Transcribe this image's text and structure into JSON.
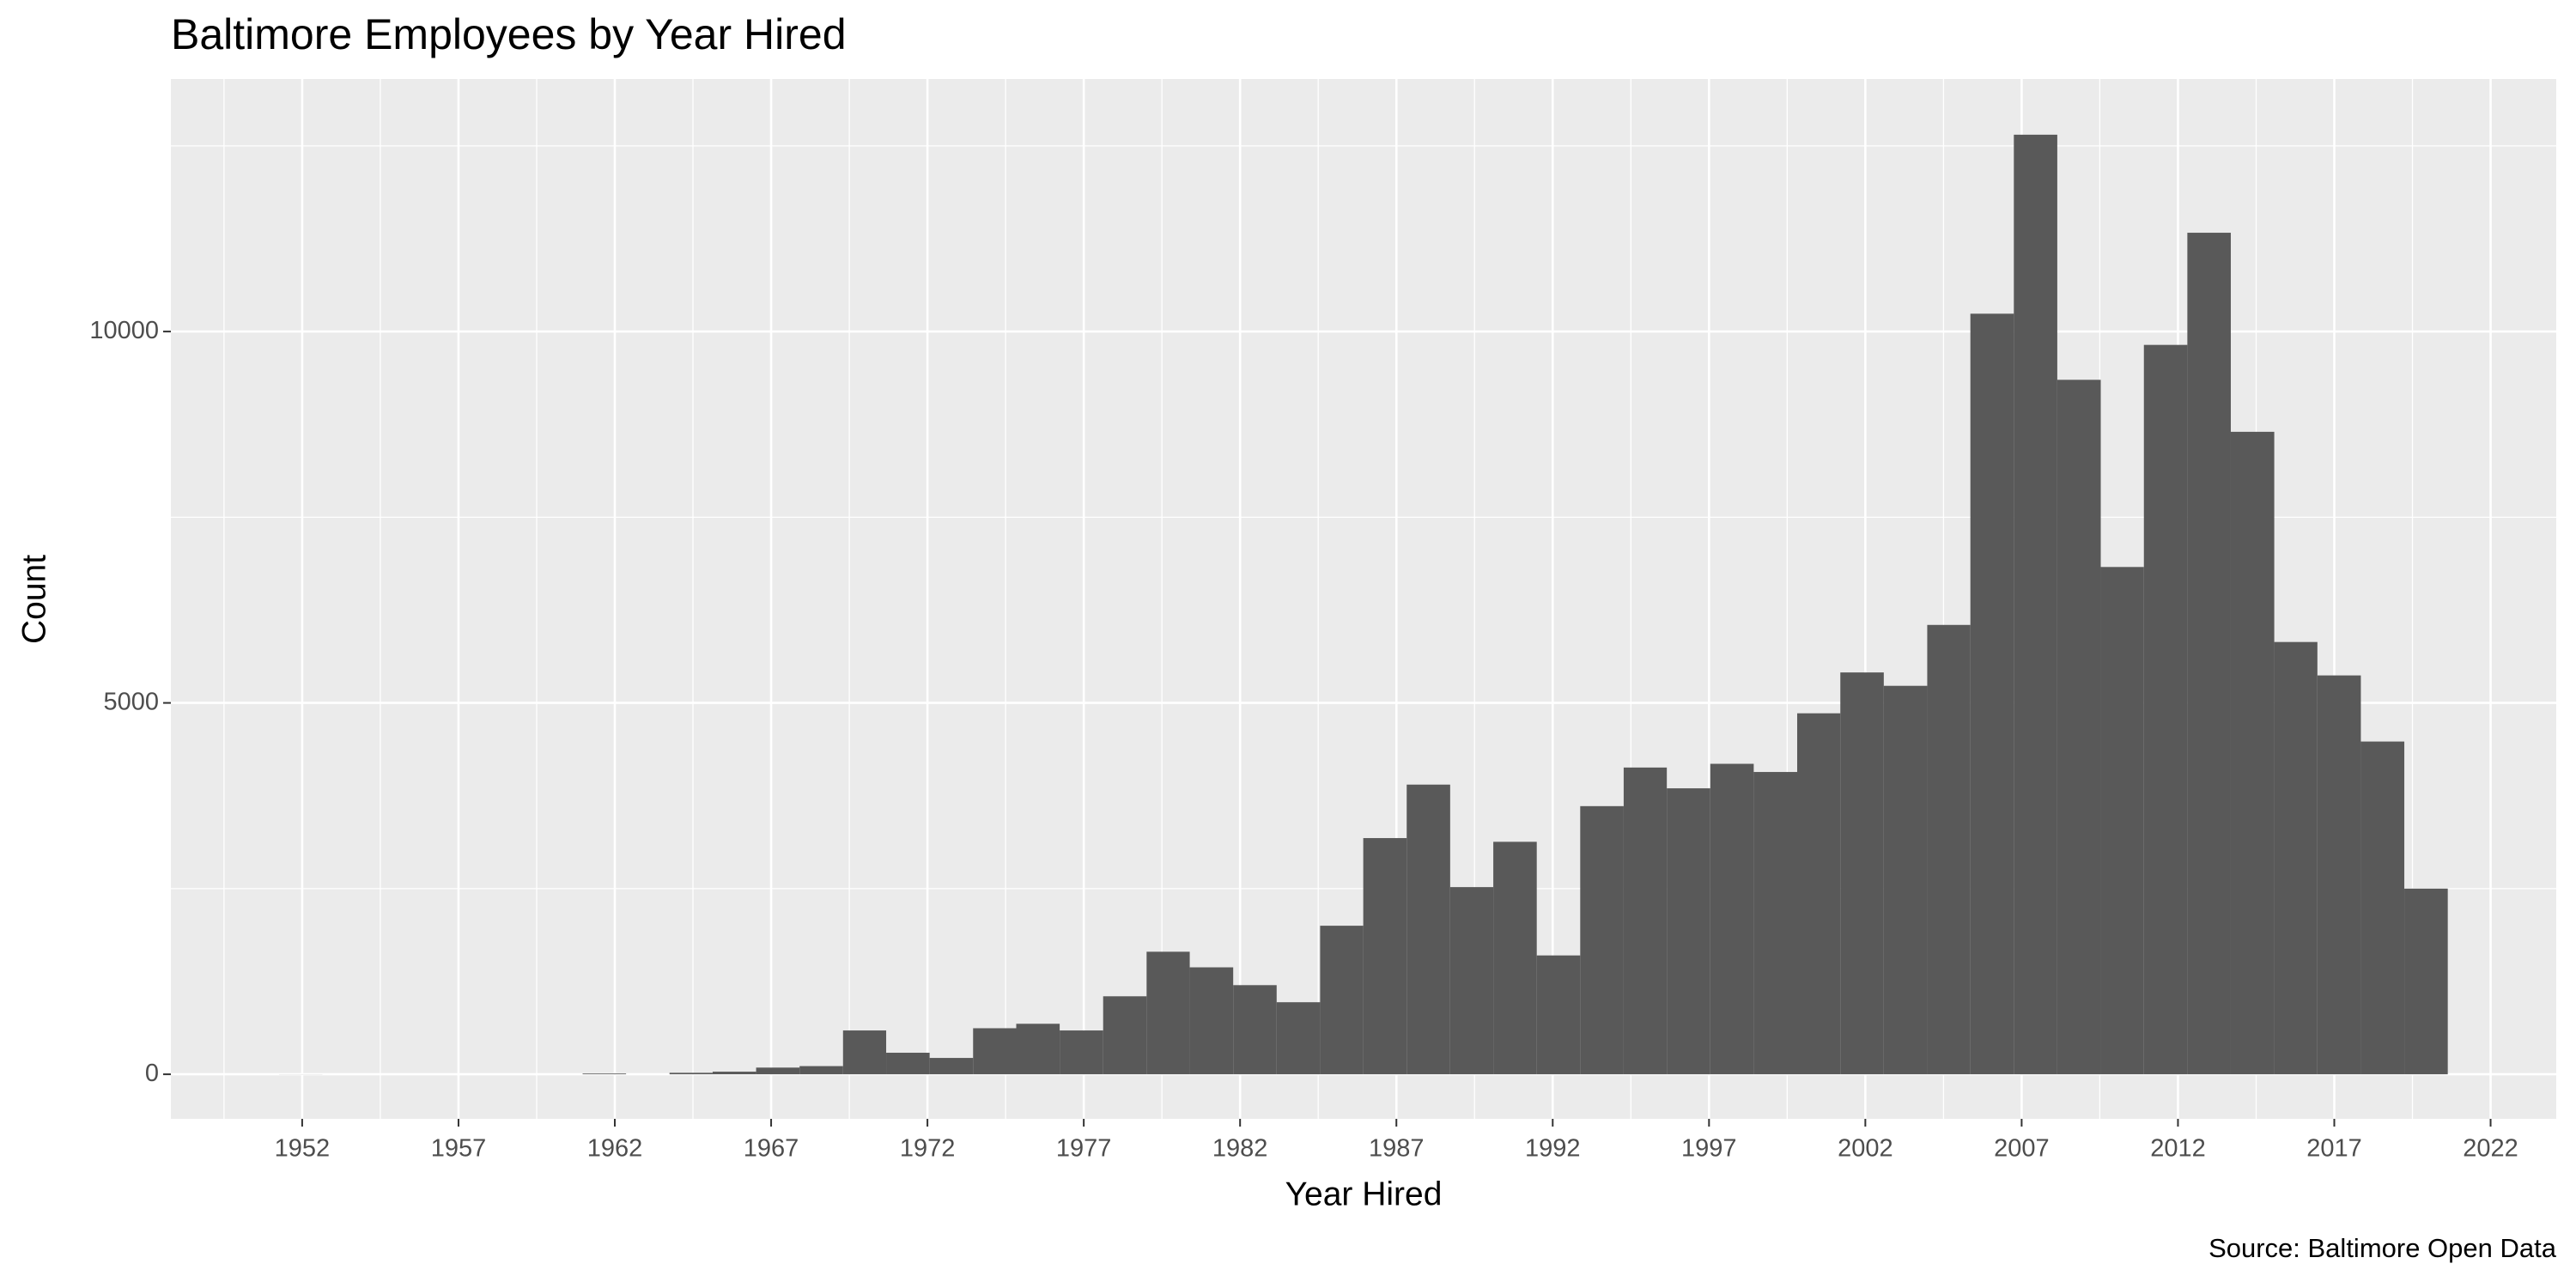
{
  "chart_data": {
    "type": "histogram",
    "title": "Baltimore Employees by Year Hired",
    "x_label": "Year Hired",
    "y_label": "Count",
    "caption": "Source: Baltimore Open Data",
    "color": "#595959",
    "bins": [
      1951.26,
      1952.65,
      1954.04,
      1955.42,
      1956.81,
      1958.2,
      1959.58,
      1960.97,
      1962.36,
      1963.75,
      1965.13,
      1966.52,
      1967.91,
      1969.3,
      1970.68,
      1972.07,
      1973.46,
      1974.84,
      1976.23,
      1977.62,
      1979.01,
      1980.39,
      1981.78,
      1983.17,
      1984.56,
      1985.94,
      1987.33,
      1988.72,
      1990.1,
      1991.49,
      1992.88,
      1994.27,
      1995.65,
      1997.04,
      1998.43,
      1999.82,
      2001.2,
      2002.59,
      2003.98,
      2005.36,
      2006.75,
      2008.14,
      2009.53,
      2010.91,
      2012.3,
      2013.69,
      2015.08,
      2016.46,
      2017.85,
      2019.24,
      2020.63
    ],
    "values": [
      1,
      0,
      0,
      0,
      0,
      0,
      0,
      10,
      0,
      20,
      35,
      90,
      110,
      590,
      290,
      220,
      620,
      680,
      590,
      1050,
      1650,
      1440,
      1200,
      970,
      2000,
      3180,
      3900,
      2520,
      3130,
      1600,
      3610,
      4130,
      3850,
      4180,
      4070,
      4860,
      5410,
      5230,
      6050,
      10240,
      12650,
      9350,
      6830,
      9820,
      11330,
      8650,
      5820,
      5370,
      4480,
      2500
    ],
    "xlim": [
      1947.8,
      2024.1
    ],
    "xticks": [
      1952,
      1957,
      1962,
      1967,
      1972,
      1977,
      1982,
      1987,
      1992,
      1997,
      2002,
      2007,
      2012,
      2017,
      2022
    ],
    "ylim": [
      -600,
      13400
    ],
    "yticks": [
      0,
      5000,
      10000
    ],
    "grid": true
  }
}
